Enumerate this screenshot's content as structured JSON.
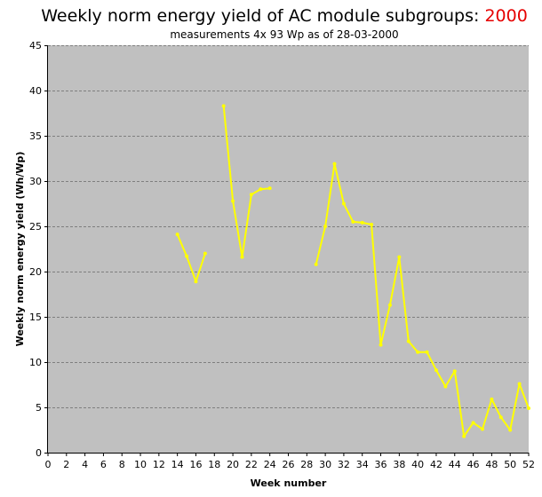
{
  "title": {
    "main": "Weekly norm energy yield of AC module subgroups: ",
    "year": "2000",
    "subtitle": "measurements 4x 93 Wp as of 28-03-2000"
  },
  "colors": {
    "plot_bg": "#c0c0c0",
    "series": "#ffff00",
    "year_text": "#e60000",
    "grid": "#7f7f7f"
  },
  "chart_data": {
    "type": "line",
    "title": "Weekly norm energy yield of AC module subgroups: 2000",
    "subtitle": "measurements 4x 93 Wp as of 28-03-2000",
    "xlabel": "Week number",
    "ylabel": "Weekly norm energy yield (Wh/Wp)",
    "xlim": [
      0,
      52
    ],
    "ylim": [
      0,
      45
    ],
    "xticks": [
      0,
      2,
      4,
      6,
      8,
      10,
      12,
      14,
      16,
      18,
      20,
      22,
      24,
      26,
      28,
      30,
      32,
      34,
      36,
      38,
      40,
      42,
      44,
      46,
      48,
      50,
      52
    ],
    "yticks": [
      0,
      5,
      10,
      15,
      20,
      25,
      30,
      35,
      40,
      45
    ],
    "grid": "horizontal dashed",
    "legend": "none",
    "series": [
      {
        "segments": [
          [
            [
              14,
              24.1
            ],
            [
              15,
              21.7
            ],
            [
              16,
              18.9
            ],
            [
              17,
              22.0
            ]
          ],
          [
            [
              19,
              38.3
            ],
            [
              20,
              27.8
            ],
            [
              21,
              21.6
            ],
            [
              22,
              28.5
            ],
            [
              23,
              29.1
            ],
            [
              24,
              29.2
            ]
          ],
          [
            [
              29,
              20.8
            ],
            [
              30,
              25.0
            ],
            [
              31,
              31.9
            ],
            [
              32,
              27.5
            ],
            [
              33,
              25.5
            ],
            [
              34,
              25.4
            ],
            [
              35,
              25.2
            ],
            [
              36,
              11.9
            ],
            [
              37,
              16.3
            ],
            [
              38,
              21.6
            ],
            [
              39,
              12.3
            ],
            [
              40,
              11.1
            ],
            [
              41,
              11.1
            ],
            [
              42,
              9.1
            ],
            [
              43,
              7.3
            ],
            [
              44,
              9.0
            ],
            [
              45,
              1.8
            ],
            [
              46,
              3.3
            ],
            [
              47,
              2.6
            ],
            [
              48,
              5.9
            ],
            [
              49,
              3.9
            ],
            [
              50,
              2.5
            ],
            [
              51,
              7.6
            ],
            [
              52,
              4.9
            ]
          ]
        ]
      }
    ]
  }
}
